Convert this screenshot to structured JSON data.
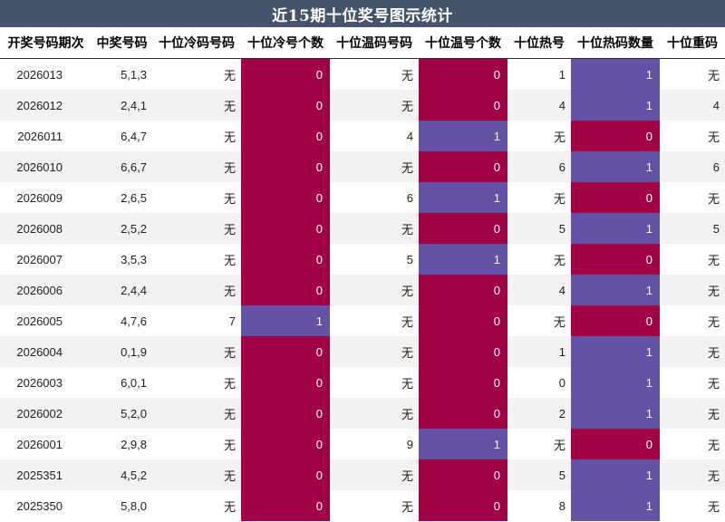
{
  "title": "近15期十位奖号图示统计",
  "colors": {
    "header_bg": "#44546a",
    "zero_box": "#a10044",
    "one_box": "#6352a5",
    "stripe": "#f2f2f2"
  },
  "headers": [
    "开奖号码期次",
    "中奖号码",
    "十位冷码号码",
    "十位冷号个数",
    "十位温码号码",
    "十位温号个数",
    "十位热号",
    "十位热码数量",
    "十位重码"
  ],
  "rows": [
    {
      "period": "2026013",
      "numbers": "5,1,3",
      "cold_code": "无",
      "cold_count": "0",
      "warm_code": "无",
      "warm_count": "0",
      "hot_code": "1",
      "hot_count": "1",
      "repeat": "无"
    },
    {
      "period": "2026012",
      "numbers": "2,4,1",
      "cold_code": "无",
      "cold_count": "0",
      "warm_code": "无",
      "warm_count": "0",
      "hot_code": "4",
      "hot_count": "1",
      "repeat": "4"
    },
    {
      "period": "2026011",
      "numbers": "6,4,7",
      "cold_code": "无",
      "cold_count": "0",
      "warm_code": "4",
      "warm_count": "1",
      "hot_code": "无",
      "hot_count": "0",
      "repeat": "无"
    },
    {
      "period": "2026010",
      "numbers": "6,6,7",
      "cold_code": "无",
      "cold_count": "0",
      "warm_code": "无",
      "warm_count": "0",
      "hot_code": "6",
      "hot_count": "1",
      "repeat": "6"
    },
    {
      "period": "2026009",
      "numbers": "2,6,5",
      "cold_code": "无",
      "cold_count": "0",
      "warm_code": "6",
      "warm_count": "1",
      "hot_code": "无",
      "hot_count": "0",
      "repeat": "无"
    },
    {
      "period": "2026008",
      "numbers": "2,5,2",
      "cold_code": "无",
      "cold_count": "0",
      "warm_code": "无",
      "warm_count": "0",
      "hot_code": "5",
      "hot_count": "1",
      "repeat": "5"
    },
    {
      "period": "2026007",
      "numbers": "3,5,3",
      "cold_code": "无",
      "cold_count": "0",
      "warm_code": "5",
      "warm_count": "1",
      "hot_code": "无",
      "hot_count": "0",
      "repeat": "无"
    },
    {
      "period": "2026006",
      "numbers": "2,4,4",
      "cold_code": "无",
      "cold_count": "0",
      "warm_code": "无",
      "warm_count": "0",
      "hot_code": "4",
      "hot_count": "1",
      "repeat": "无"
    },
    {
      "period": "2026005",
      "numbers": "4,7,6",
      "cold_code": "7",
      "cold_count": "1",
      "warm_code": "无",
      "warm_count": "0",
      "hot_code": "无",
      "hot_count": "0",
      "repeat": "无"
    },
    {
      "period": "2026004",
      "numbers": "0,1,9",
      "cold_code": "无",
      "cold_count": "0",
      "warm_code": "无",
      "warm_count": "0",
      "hot_code": "1",
      "hot_count": "1",
      "repeat": "无"
    },
    {
      "period": "2026003",
      "numbers": "6,0,1",
      "cold_code": "无",
      "cold_count": "0",
      "warm_code": "无",
      "warm_count": "0",
      "hot_code": "0",
      "hot_count": "1",
      "repeat": "无"
    },
    {
      "period": "2026002",
      "numbers": "5,2,0",
      "cold_code": "无",
      "cold_count": "0",
      "warm_code": "无",
      "warm_count": "0",
      "hot_code": "2",
      "hot_count": "1",
      "repeat": "无"
    },
    {
      "period": "2026001",
      "numbers": "2,9,8",
      "cold_code": "无",
      "cold_count": "0",
      "warm_code": "9",
      "warm_count": "1",
      "hot_code": "无",
      "hot_count": "0",
      "repeat": "无"
    },
    {
      "period": "2025351",
      "numbers": "4,5,2",
      "cold_code": "无",
      "cold_count": "0",
      "warm_code": "无",
      "warm_count": "0",
      "hot_code": "5",
      "hot_count": "1",
      "repeat": "无"
    },
    {
      "period": "2025350",
      "numbers": "5,8,0",
      "cold_code": "无",
      "cold_count": "0",
      "warm_code": "无",
      "warm_count": "0",
      "hot_code": "8",
      "hot_count": "1",
      "repeat": "无"
    }
  ]
}
